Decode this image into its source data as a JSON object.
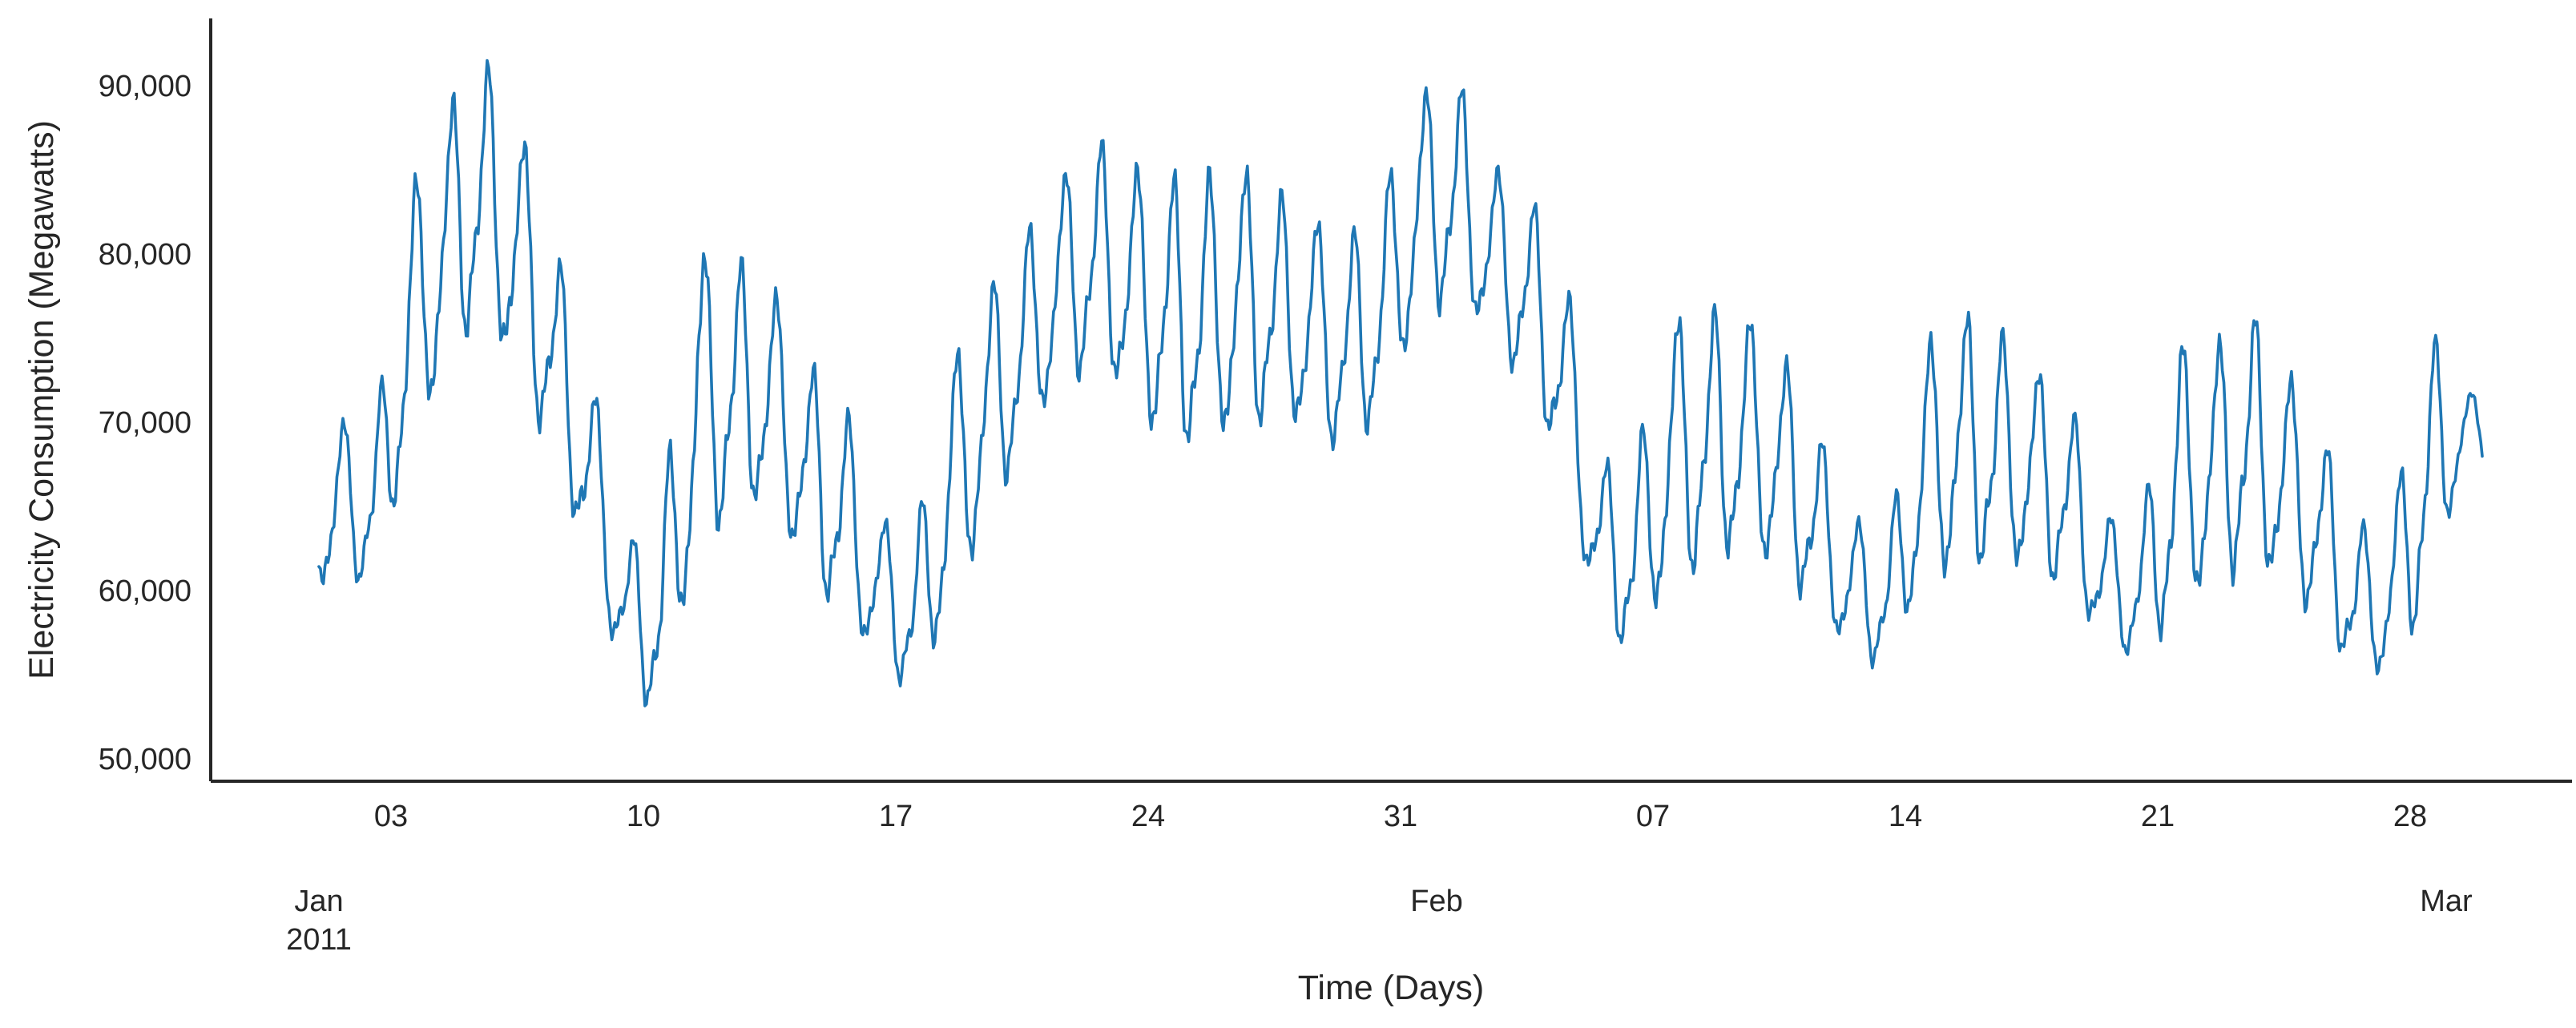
{
  "chart_data": {
    "type": "line",
    "title": "",
    "xlabel": "Time (Days)",
    "ylabel": "Electricity Consumption (Megawatts)",
    "x_range": [
      "2010-12-29",
      "2011-03-02"
    ],
    "ylim": [
      49000,
      92500
    ],
    "grid": false,
    "line_color": "#1f77b4",
    "y_ticks": [
      {
        "value": 50000,
        "label": "50,000"
      },
      {
        "value": 60000,
        "label": "60,000"
      },
      {
        "value": 70000,
        "label": "70,000"
      },
      {
        "value": 80000,
        "label": "80,000"
      },
      {
        "value": 90000,
        "label": "90,000"
      }
    ],
    "x_ticks": [
      {
        "date": "2011-01-03",
        "label": "03"
      },
      {
        "date": "2011-01-10",
        "label": "10"
      },
      {
        "date": "2011-01-17",
        "label": "17"
      },
      {
        "date": "2011-01-24",
        "label": "24"
      },
      {
        "date": "2011-01-31",
        "label": "31"
      },
      {
        "date": "2011-02-07",
        "label": "07"
      },
      {
        "date": "2011-02-14",
        "label": "14"
      },
      {
        "date": "2011-02-21",
        "label": "21"
      },
      {
        "date": "2011-02-28",
        "label": "28"
      }
    ],
    "x_major_labels": [
      {
        "date": "2011-01-01",
        "lines": [
          "Jan",
          "2011"
        ]
      },
      {
        "date": "2011-02-01",
        "lines": [
          "Feb"
        ]
      },
      {
        "date": "2011-03-01",
        "lines": [
          "Mar"
        ]
      }
    ],
    "series": [
      {
        "x_start": "2011-01-01",
        "resolution": "daily",
        "x_end": "2011-03-01",
        "daily_max": [
          71000,
          69000,
          84000,
          89000,
          92000,
          89000,
          81000,
          74000,
          63000,
          65000,
          81000,
          80000,
          79000,
          74000,
          72000,
          65000,
          63000,
          74000,
          78000,
          81000,
          85000,
          87000,
          86000,
          85000,
          85000,
          86000,
          84000,
          83000,
          81000,
          84000,
          90000,
          91000,
          86000,
          84000,
          80000,
          68000,
          68000,
          77000,
          77000,
          77000,
          75000,
          70000,
          65000,
          63000,
          75000,
          77000,
          76000,
          74000,
          72000,
          65000,
          64000,
          75000,
          75000,
          77000,
          74000,
          70000,
          64000,
          65000,
          76000,
          72000
        ],
        "daily_min": [
          59000,
          60000,
          66000,
          72000,
          75000,
          71000,
          67000,
          60000,
          54000,
          51000,
          61000,
          63000,
          64000,
          60000,
          57000,
          55000,
          53000,
          57000,
          63000,
          67000,
          71000,
          72000,
          70000,
          67000,
          67000,
          68000,
          69000,
          68000,
          67000,
          69000,
          75000,
          76000,
          74000,
          71000,
          66000,
          57000,
          55000,
          59000,
          60000,
          61000,
          60000,
          58000,
          55000,
          55000,
          59000,
          60000,
          60000,
          60000,
          59000,
          56000,
          55000,
          57000,
          59000,
          60000,
          59000,
          57000,
          54000,
          54000,
          58000,
          67000
        ]
      }
    ]
  }
}
